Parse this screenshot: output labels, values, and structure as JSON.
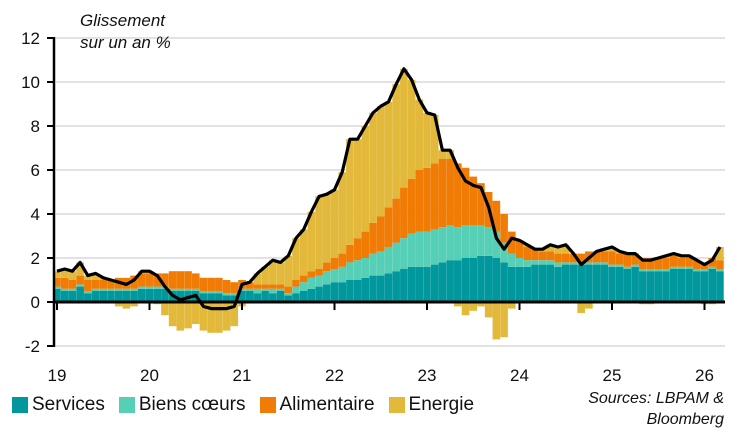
{
  "chart_data": {
    "type": "bar",
    "subtype": "stacked bar with line",
    "title": "Glissement\nsur un an %",
    "title_lines": [
      "Glissement",
      "sur un an %"
    ],
    "ylim": [
      -2,
      12
    ],
    "yticks": [
      -2,
      0,
      2,
      4,
      6,
      8,
      10,
      12
    ],
    "xtick_labels": [
      "19",
      "20",
      "21",
      "22",
      "23",
      "24",
      "25",
      "26"
    ],
    "x_start": "2019-01",
    "x_frequency": "monthly",
    "grid": "horizontal",
    "legend_position": "bottom",
    "sources": [
      "Sources: LBPAM &",
      "Bloomberg"
    ],
    "series": [
      {
        "name": "Services",
        "color": "#00979D",
        "values": [
          0.6,
          0.5,
          0.5,
          0.7,
          0.4,
          0.5,
          0.5,
          0.5,
          0.5,
          0.5,
          0.5,
          0.6,
          0.6,
          0.6,
          0.6,
          0.5,
          0.5,
          0.5,
          0.5,
          0.4,
          0.4,
          0.4,
          0.3,
          0.3,
          0.5,
          0.5,
          0.4,
          0.5,
          0.4,
          0.5,
          0.3,
          0.4,
          0.5,
          0.6,
          0.7,
          0.8,
          0.9,
          0.9,
          1.0,
          1.0,
          1.1,
          1.2,
          1.2,
          1.3,
          1.4,
          1.5,
          1.6,
          1.6,
          1.6,
          1.7,
          1.8,
          1.9,
          1.9,
          2.0,
          2.0,
          2.1,
          2.1,
          2.0,
          1.8,
          1.6,
          1.6,
          1.6,
          1.7,
          1.7,
          1.7,
          1.6,
          1.7,
          1.7,
          1.7,
          1.7,
          1.7,
          1.7,
          1.6,
          1.6,
          1.5,
          1.6,
          1.4,
          1.4,
          1.4,
          1.4,
          1.5,
          1.5,
          1.5,
          1.4,
          1.4,
          1.5,
          1.4
        ]
      },
      {
        "name": "Biens cœurs",
        "color": "#55CFB6",
        "values": [
          0.1,
          0.1,
          0.1,
          0.1,
          0.1,
          0.1,
          0.1,
          0.1,
          0.1,
          0.1,
          0.1,
          0.1,
          0.1,
          0.1,
          0.1,
          0.1,
          0.1,
          0.1,
          0.1,
          0.1,
          0.1,
          0.1,
          0.1,
          0.1,
          0.1,
          0.1,
          0.2,
          0.1,
          0.2,
          0.1,
          0.1,
          0.3,
          0.4,
          0.5,
          0.5,
          0.6,
          0.6,
          0.7,
          0.8,
          0.9,
          0.9,
          1.0,
          1.1,
          1.2,
          1.3,
          1.4,
          1.5,
          1.6,
          1.6,
          1.6,
          1.6,
          1.6,
          1.5,
          1.5,
          1.5,
          1.4,
          1.3,
          1.2,
          0.9,
          0.6,
          0.4,
          0.3,
          0.2,
          0.2,
          0.2,
          0.2,
          0.1,
          0.1,
          0.1,
          0.1,
          0.1,
          0.1,
          0.1,
          0.1,
          0.1,
          0.1,
          0.1,
          0.1,
          0.1,
          0.1,
          0.1,
          0.1,
          0.1,
          0.1,
          0.1,
          0.1,
          0.1
        ]
      },
      {
        "name": "Alimentaire",
        "color": "#F07B05",
        "values": [
          0.4,
          0.5,
          0.4,
          0.4,
          0.5,
          0.4,
          0.4,
          0.4,
          0.5,
          0.5,
          0.6,
          0.6,
          0.6,
          0.6,
          0.6,
          0.8,
          0.8,
          0.8,
          0.7,
          0.6,
          0.6,
          0.6,
          0.6,
          0.5,
          0.4,
          0.3,
          0.2,
          0.2,
          0.2,
          0.2,
          0.3,
          0.3,
          0.3,
          0.3,
          0.3,
          0.4,
          0.5,
          0.6,
          0.8,
          1.0,
          1.2,
          1.4,
          1.6,
          1.8,
          2.0,
          2.3,
          2.5,
          2.8,
          2.9,
          3.0,
          3.1,
          3.0,
          2.9,
          2.6,
          2.2,
          1.9,
          1.6,
          1.4,
          1.3,
          1.0,
          0.8,
          0.6,
          0.5,
          0.4,
          0.4,
          0.4,
          0.4,
          0.4,
          0.4,
          0.5,
          0.5,
          0.5,
          0.6,
          0.5,
          0.6,
          0.5,
          0.5,
          0.5,
          0.5,
          0.5,
          0.5,
          0.4,
          0.4,
          0.4,
          0.3,
          0.4,
          0.4
        ]
      },
      {
        "name": "Energie",
        "color": "#E2B93B",
        "values": [
          0.3,
          0.4,
          0.4,
          0.6,
          0.2,
          0.3,
          0.1,
          0.0,
          -0.2,
          -0.3,
          -0.2,
          0.1,
          0.1,
          -0.1,
          -0.6,
          -1.1,
          -1.3,
          -1.2,
          -1.0,
          -1.3,
          -1.4,
          -1.4,
          -1.3,
          -1.1,
          -0.2,
          0.0,
          0.5,
          0.8,
          1.1,
          1.0,
          1.4,
          1.9,
          2.1,
          2.7,
          3.3,
          3.1,
          3.1,
          3.7,
          4.8,
          4.5,
          4.8,
          5.0,
          5.0,
          4.8,
          5.2,
          5.4,
          4.5,
          3.2,
          2.5,
          2.2,
          0.4,
          0.4,
          -0.2,
          -0.6,
          -0.4,
          -0.2,
          -0.7,
          -1.7,
          -1.6,
          -0.3,
          0.0,
          0.1,
          0.0,
          0.1,
          0.3,
          0.3,
          0.4,
          0.0,
          -0.5,
          -0.3,
          0.0,
          0.1,
          0.2,
          0.1,
          0.0,
          0.0,
          -0.1,
          -0.1,
          0.0,
          0.1,
          0.1,
          0.1,
          0.1,
          0.0,
          -0.1,
          -0.1,
          0.6
        ]
      }
    ],
    "line": {
      "color": "#000000",
      "values": [
        1.4,
        1.5,
        1.4,
        1.8,
        1.2,
        1.3,
        1.1,
        1.0,
        0.9,
        0.8,
        1.0,
        1.4,
        1.4,
        1.2,
        0.7,
        0.3,
        0.1,
        0.2,
        0.3,
        -0.2,
        -0.3,
        -0.3,
        -0.3,
        -0.2,
        0.8,
        0.9,
        1.3,
        1.6,
        1.9,
        1.8,
        2.1,
        2.9,
        3.3,
        4.1,
        4.8,
        4.9,
        5.1,
        5.9,
        7.4,
        7.4,
        8.0,
        8.6,
        8.9,
        9.1,
        9.9,
        10.6,
        10.1,
        9.2,
        8.6,
        8.5,
        6.9,
        6.9,
        6.1,
        5.5,
        5.3,
        5.2,
        4.3,
        2.9,
        2.4,
        2.9,
        2.8,
        2.6,
        2.4,
        2.4,
        2.6,
        2.5,
        2.6,
        2.2,
        1.7,
        2.0,
        2.3,
        2.4,
        2.5,
        2.3,
        2.2,
        2.2,
        1.9,
        1.9,
        2.0,
        2.1,
        2.2,
        2.1,
        2.1,
        1.9,
        1.7,
        1.9,
        2.5
      ]
    }
  }
}
